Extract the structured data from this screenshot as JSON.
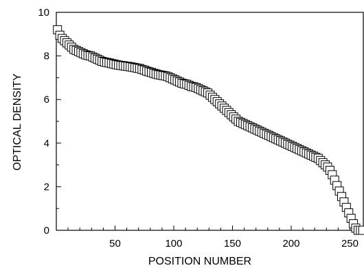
{
  "colors": {
    "axis": "#000000",
    "marker_fill": "#ffffff",
    "marker_stroke": "#000000",
    "background": "#ffffff"
  },
  "chart_data": {
    "type": "scatter",
    "title": "",
    "xlabel": "POSITION  NUMBER",
    "ylabel": "OPTICAL DENSITY",
    "xlim": [
      0,
      262
    ],
    "ylim": [
      0,
      10
    ],
    "x_ticks": [
      50,
      100,
      150,
      200,
      250
    ],
    "y_ticks": [
      0,
      2,
      4,
      6,
      8,
      10
    ],
    "grid": false,
    "legend": "none",
    "marker": "open-square",
    "series": [
      {
        "x": [
          1,
          3,
          5,
          7,
          9,
          11,
          13,
          15,
          17,
          19,
          21,
          23,
          25,
          27,
          29,
          31,
          33,
          35,
          37,
          39,
          41,
          43,
          45,
          47,
          49,
          51,
          53,
          55,
          57,
          59,
          61,
          63,
          65,
          67,
          69,
          71,
          73,
          75,
          77,
          79,
          81,
          83,
          85,
          87,
          89,
          91,
          93,
          95,
          97,
          99,
          101,
          103,
          105,
          107,
          109,
          111,
          113,
          115,
          117,
          119,
          121,
          123,
          125,
          127,
          129,
          131,
          133,
          135,
          137,
          139,
          141,
          143,
          145,
          147,
          149,
          151,
          153,
          155,
          157,
          159,
          161,
          163,
          165,
          167,
          169,
          171,
          173,
          175,
          177,
          179,
          181,
          183,
          185,
          187,
          189,
          191,
          193,
          195,
          197,
          199,
          201,
          203,
          205,
          207,
          209,
          211,
          213,
          215,
          217,
          219,
          221,
          223,
          225,
          227,
          229,
          231,
          233,
          235,
          237,
          239,
          241,
          243,
          245,
          247,
          249,
          251,
          253,
          255,
          257,
          259,
          261
        ],
        "y": [
          9.2,
          8.95,
          8.8,
          8.7,
          8.6,
          8.5,
          8.4,
          8.3,
          8.25,
          8.2,
          8.15,
          8.1,
          8.05,
          8.02,
          8.0,
          7.95,
          7.9,
          7.85,
          7.8,
          7.75,
          7.72,
          7.7,
          7.68,
          7.65,
          7.63,
          7.6,
          7.58,
          7.56,
          7.55,
          7.53,
          7.52,
          7.5,
          7.48,
          7.46,
          7.44,
          7.42,
          7.38,
          7.35,
          7.3,
          7.27,
          7.24,
          7.2,
          7.17,
          7.14,
          7.12,
          7.1,
          7.08,
          7.05,
          7.0,
          6.95,
          6.9,
          6.85,
          6.8,
          6.75,
          6.72,
          6.7,
          6.65,
          6.6,
          6.58,
          6.55,
          6.5,
          6.45,
          6.4,
          6.35,
          6.3,
          6.2,
          6.1,
          6.0,
          5.9,
          5.8,
          5.7,
          5.6,
          5.5,
          5.4,
          5.3,
          5.2,
          5.1,
          5.0,
          4.95,
          4.9,
          4.85,
          4.8,
          4.75,
          4.7,
          4.65,
          4.6,
          4.55,
          4.5,
          4.45,
          4.4,
          4.35,
          4.3,
          4.25,
          4.2,
          4.15,
          4.1,
          4.05,
          4.0,
          3.95,
          3.9,
          3.85,
          3.8,
          3.75,
          3.7,
          3.65,
          3.6,
          3.55,
          3.5,
          3.45,
          3.4,
          3.35,
          3.3,
          3.2,
          3.1,
          3.0,
          2.9,
          2.75,
          2.55,
          2.3,
          2.05,
          1.8,
          1.55,
          1.3,
          1.05,
          0.8,
          0.55,
          0.3,
          0.1,
          0.0,
          0.0,
          0.0
        ]
      }
    ]
  }
}
